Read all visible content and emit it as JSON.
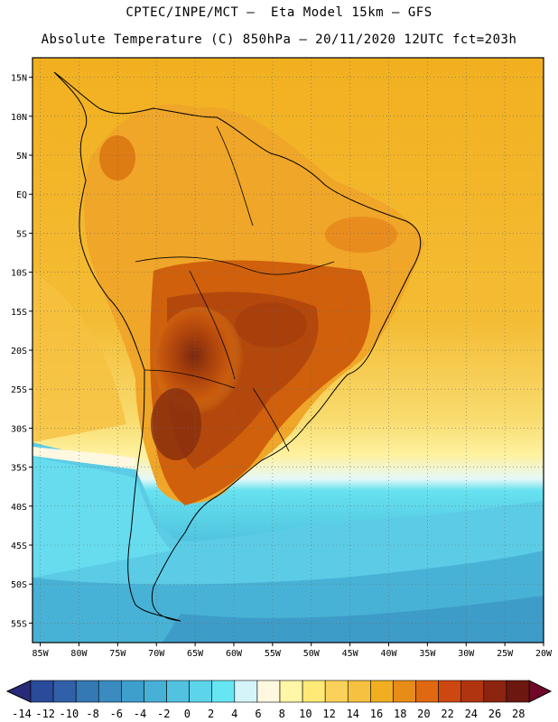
{
  "title": {
    "line1": "CPTEC/INPE/MCT –  Eta Model 15km – GFS",
    "line2": "Absolute Temperature (C) 850hPa – 20/11/2020 12UTC fct=203h"
  },
  "map": {
    "lat_labels": [
      "15N",
      "10N",
      "5N",
      "EQ",
      "5S",
      "10S",
      "15S",
      "20S",
      "25S",
      "30S",
      "35S",
      "40S",
      "45S",
      "50S",
      "55S"
    ],
    "lon_labels": [
      "85W",
      "80W",
      "75W",
      "70W",
      "65W",
      "60W",
      "55W",
      "50W",
      "45W",
      "40W",
      "35W",
      "30W",
      "25W",
      "20W"
    ],
    "lat_range": [
      17.5,
      -57.5
    ],
    "lon_range": [
      -86,
      -20
    ]
  },
  "colorbar": {
    "labels": [
      "-14",
      "-12",
      "-10",
      "-8",
      "-6",
      "-4",
      "-2",
      "0",
      "2",
      "4",
      "6",
      "8",
      "10",
      "12",
      "14",
      "16",
      "18",
      "20",
      "22",
      "24",
      "26",
      "28"
    ],
    "colors": [
      "#2a4a9a",
      "#3060a8",
      "#3478b4",
      "#3a8cc0",
      "#3e9ecc",
      "#46b0d6",
      "#52c2e0",
      "#5cd4ea",
      "#66e6f2",
      "#d4f4fa",
      "#fff8e0",
      "#fff6a8",
      "#ffea78",
      "#fad25a",
      "#f6c040",
      "#f0ae20",
      "#e88c18",
      "#e06810",
      "#cc4810",
      "#b03410",
      "#8c2410",
      "#6c1810"
    ],
    "arrow_left_color": "#2a2a7a",
    "arrow_right_color": "#70082a"
  }
}
